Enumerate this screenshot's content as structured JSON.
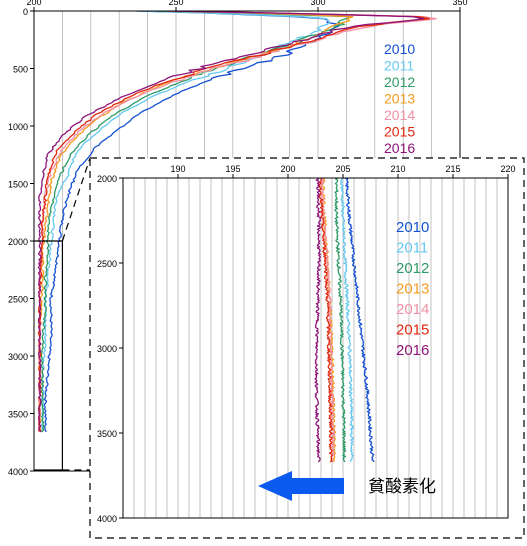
{
  "colors": {
    "2010": "#1450d2",
    "2011": "#66c8f0",
    "2012": "#2e9a66",
    "2013": "#f59a1e",
    "2014": "#f290a4",
    "2015": "#e0280f",
    "2016": "#8c1478",
    "grid": "#b4b4b4",
    "arrow": "#0a5af0"
  },
  "annotation": {
    "text": "貧酸素化",
    "icon": "left-arrow-icon"
  },
  "chart_data": [
    {
      "id": "main",
      "type": "line",
      "title": "",
      "xlabel": "",
      "ylabel": "",
      "xlim": [
        200,
        350
      ],
      "ylim": [
        0,
        4000
      ],
      "y_inverted": true,
      "x_ticks": [
        "200",
        "250",
        "300",
        "350"
      ],
      "y_ticks": [
        "0",
        "500",
        "1000",
        "1500",
        "2000",
        "2500",
        "3000",
        "3500",
        "4000"
      ],
      "grid": true,
      "legend_position": "top-right",
      "series": [
        {
          "name": "2010",
          "x": [
            236,
            270,
            302,
            307,
            300,
            286,
            266,
            250,
            238,
            229,
            221,
            215,
            212,
            210,
            209,
            208,
            206,
            206,
            205,
            204,
            204,
            204
          ],
          "y": [
            0,
            25,
            60,
            130,
            250,
            400,
            560,
            720,
            880,
            1040,
            1200,
            1400,
            1600,
            1800,
            2000,
            2200,
            2500,
            2800,
            3100,
            3400,
            3600,
            3660
          ]
        },
        {
          "name": "2011",
          "x": [
            238,
            272,
            304,
            304,
            292,
            277,
            258,
            242,
            230,
            222,
            215,
            212,
            208,
            207,
            206,
            205,
            204,
            204,
            203,
            203,
            203
          ],
          "y": [
            0,
            25,
            60,
            120,
            260,
            420,
            580,
            740,
            900,
            1060,
            1220,
            1420,
            1620,
            1820,
            2020,
            2300,
            2600,
            2900,
            3200,
            3500,
            3650
          ]
        },
        {
          "name": "2012",
          "x": [
            242,
            280,
            310,
            307,
            290,
            272,
            253,
            238,
            227,
            219,
            213,
            209,
            207,
            205,
            205,
            204,
            204,
            203,
            203,
            203,
            203
          ],
          "y": [
            0,
            20,
            50,
            130,
            300,
            440,
            600,
            760,
            920,
            1080,
            1240,
            1440,
            1640,
            1840,
            2040,
            2300,
            2600,
            2900,
            3200,
            3500,
            3660
          ]
        },
        {
          "name": "2013",
          "x": [
            245,
            285,
            312,
            305,
            287,
            265,
            245,
            231,
            221,
            214,
            209,
            206,
            205,
            204,
            203,
            203,
            202,
            202,
            202,
            202
          ],
          "y": [
            0,
            20,
            50,
            150,
            330,
            480,
            640,
            800,
            960,
            1120,
            1280,
            1480,
            1680,
            1880,
            2080,
            2400,
            2700,
            3000,
            3300,
            3660
          ]
        },
        {
          "name": "2014",
          "x": [
            250,
            300,
            348,
            320,
            298,
            276,
            255,
            238,
            225,
            216,
            210,
            206,
            204,
            203,
            203,
            202,
            202,
            202,
            202
          ],
          "y": [
            0,
            30,
            55,
            120,
            260,
            420,
            560,
            720,
            880,
            1040,
            1200,
            1400,
            1600,
            1800,
            2000,
            2400,
            2800,
            3200,
            3660
          ]
        },
        {
          "name": "2015",
          "x": [
            248,
            300,
            345,
            315,
            295,
            272,
            250,
            234,
            222,
            214,
            208,
            205,
            204,
            203,
            203,
            202,
            202,
            202,
            202
          ],
          "y": [
            0,
            25,
            55,
            130,
            280,
            430,
            580,
            740,
            900,
            1060,
            1220,
            1420,
            1620,
            1820,
            2020,
            2400,
            2800,
            3200,
            3660
          ]
        },
        {
          "name": "2016",
          "x": [
            246,
            298,
            343,
            310,
            288,
            266,
            246,
            230,
            218,
            210,
            205,
            203,
            202,
            202,
            202,
            202,
            202,
            202,
            202
          ],
          "y": [
            0,
            25,
            55,
            140,
            300,
            440,
            600,
            760,
            920,
            1080,
            1240,
            1440,
            1640,
            1840,
            2040,
            2400,
            2800,
            3200,
            3660
          ]
        }
      ]
    },
    {
      "id": "inset",
      "type": "line",
      "title": "",
      "xlabel": "",
      "ylabel": "",
      "xlim": [
        185,
        220
      ],
      "ylim": [
        2000,
        4000
      ],
      "y_inverted": true,
      "x_ticks": [
        "190",
        "195",
        "200",
        "205",
        "210",
        "215",
        "220"
      ],
      "y_ticks": [
        "2000",
        "2500",
        "3000",
        "3500",
        "4000"
      ],
      "grid": true,
      "legend_position": "top-right",
      "series": [
        {
          "name": "2010",
          "x": [
            205.3,
            205.6,
            206.0,
            206.4,
            206.8,
            207.2,
            207.5,
            207.7
          ],
          "y": [
            2000,
            2250,
            2500,
            2750,
            3000,
            3250,
            3500,
            3670
          ]
        },
        {
          "name": "2011",
          "x": [
            204.9,
            205.0,
            205.2,
            205.4,
            205.6,
            205.7,
            205.8,
            205.8
          ],
          "y": [
            2000,
            2250,
            2500,
            2750,
            3000,
            3250,
            3500,
            3670
          ]
        },
        {
          "name": "2012",
          "x": [
            204.4,
            204.4,
            204.6,
            204.8,
            204.9,
            205.0,
            205.1,
            205.1
          ],
          "y": [
            2000,
            2250,
            2500,
            2750,
            3000,
            3250,
            3500,
            3670
          ]
        },
        {
          "name": "2013",
          "x": [
            203.2,
            203.3,
            203.6,
            203.8,
            204.0,
            204.1,
            204.2,
            204.2
          ],
          "y": [
            2000,
            2250,
            2500,
            2750,
            3000,
            3250,
            3500,
            3670
          ]
        },
        {
          "name": "2014",
          "x": [
            203.1,
            203.2,
            203.6,
            203.8,
            203.9,
            204.0,
            204.1,
            204.1
          ],
          "y": [
            2000,
            2250,
            2500,
            2750,
            3000,
            3250,
            3500,
            3670
          ]
        },
        {
          "name": "2015",
          "x": [
            202.9,
            203.1,
            203.4,
            203.6,
            203.7,
            203.8,
            203.9,
            203.9
          ],
          "y": [
            2000,
            2250,
            2500,
            2750,
            3000,
            3250,
            3500,
            3670
          ]
        },
        {
          "name": "2016",
          "x": [
            202.7,
            202.8,
            202.8,
            202.7,
            202.6,
            202.6,
            202.7,
            202.8
          ],
          "y": [
            2000,
            2250,
            2500,
            2750,
            3000,
            3250,
            3500,
            3670
          ]
        }
      ]
    }
  ]
}
